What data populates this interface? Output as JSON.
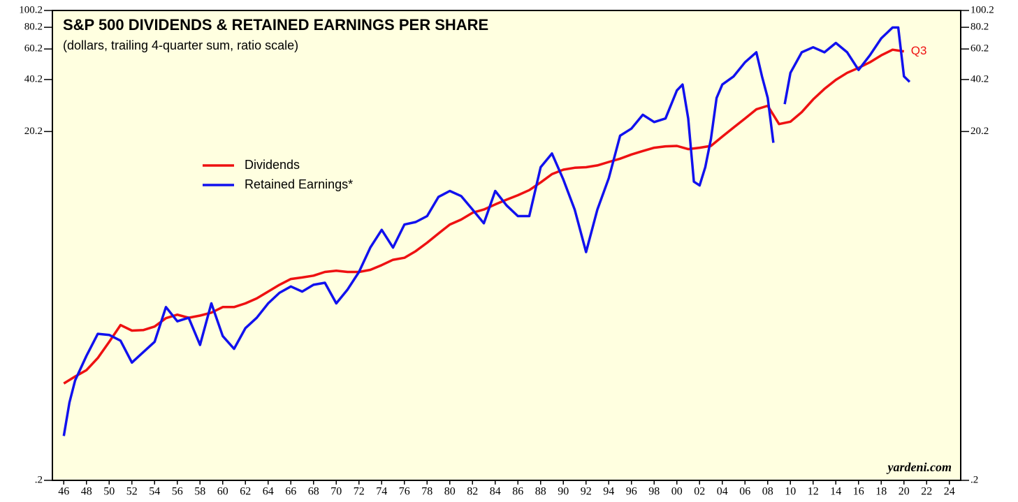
{
  "chart_data": {
    "type": "line",
    "title": "S&P 500 DIVIDENDS & RETAINED EARNINGS PER SHARE",
    "subtitle": "(dollars, trailing 4-quarter sum, ratio scale)",
    "annotation": "Q3",
    "watermark": "yardeni.com",
    "log_scale": true,
    "legend": "upper-left",
    "xlim": [
      1945,
      2025
    ],
    "xticks": [
      {
        "value": 1946,
        "label": "46"
      },
      {
        "value": 1948,
        "label": "48"
      },
      {
        "value": 1950,
        "label": "50"
      },
      {
        "value": 1952,
        "label": "52"
      },
      {
        "value": 1954,
        "label": "54"
      },
      {
        "value": 1956,
        "label": "56"
      },
      {
        "value": 1958,
        "label": "58"
      },
      {
        "value": 1960,
        "label": "60"
      },
      {
        "value": 1962,
        "label": "62"
      },
      {
        "value": 1964,
        "label": "64"
      },
      {
        "value": 1966,
        "label": "66"
      },
      {
        "value": 1968,
        "label": "68"
      },
      {
        "value": 1970,
        "label": "70"
      },
      {
        "value": 1972,
        "label": "72"
      },
      {
        "value": 1974,
        "label": "74"
      },
      {
        "value": 1976,
        "label": "76"
      },
      {
        "value": 1978,
        "label": "78"
      },
      {
        "value": 1980,
        "label": "80"
      },
      {
        "value": 1982,
        "label": "82"
      },
      {
        "value": 1984,
        "label": "84"
      },
      {
        "value": 1986,
        "label": "86"
      },
      {
        "value": 1988,
        "label": "88"
      },
      {
        "value": 1990,
        "label": "90"
      },
      {
        "value": 1992,
        "label": "92"
      },
      {
        "value": 1994,
        "label": "94"
      },
      {
        "value": 1996,
        "label": "96"
      },
      {
        "value": 1998,
        "label": "98"
      },
      {
        "value": 2000,
        "label": "00"
      },
      {
        "value": 2002,
        "label": "02"
      },
      {
        "value": 2004,
        "label": "04"
      },
      {
        "value": 2006,
        "label": "06"
      },
      {
        "value": 2008,
        "label": "08"
      },
      {
        "value": 2010,
        "label": "10"
      },
      {
        "value": 2012,
        "label": "12"
      },
      {
        "value": 2014,
        "label": "14"
      },
      {
        "value": 2016,
        "label": "16"
      },
      {
        "value": 2018,
        "label": "18"
      },
      {
        "value": 2020,
        "label": "20"
      },
      {
        "value": 2022,
        "label": "22"
      },
      {
        "value": 2024,
        "label": "24"
      }
    ],
    "ylim": [
      0.2,
      100.2
    ],
    "yticks": [
      {
        "value": 0.2,
        "label": ".2"
      },
      20.2,
      40.2,
      60.2,
      80.2,
      100.2
    ],
    "series": [
      {
        "name": "Dividends",
        "color": "#ee1111",
        "x": [
          1946,
          1947,
          1948,
          1949,
          1950,
          1951,
          1952,
          1953,
          1954,
          1955,
          1956,
          1957,
          1958,
          1959,
          1960,
          1961,
          1962,
          1963,
          1964,
          1965,
          1966,
          1967,
          1968,
          1969,
          1970,
          1971,
          1972,
          1973,
          1974,
          1975,
          1976,
          1977,
          1978,
          1979,
          1980,
          1981,
          1982,
          1983,
          1984,
          1985,
          1986,
          1987,
          1988,
          1989,
          1990,
          1991,
          1992,
          1993,
          1994,
          1995,
          1996,
          1997,
          1998,
          1999,
          2000,
          2001,
          2002,
          2003,
          2004,
          2005,
          2006,
          2007,
          2008,
          2009,
          2010,
          2011,
          2012,
          2013,
          2014,
          2015,
          2016,
          2017,
          2018,
          2019,
          2020
        ],
        "values": [
          0.72,
          0.79,
          0.86,
          1.01,
          1.25,
          1.56,
          1.45,
          1.46,
          1.53,
          1.71,
          1.79,
          1.72,
          1.77,
          1.84,
          1.98,
          1.98,
          2.08,
          2.22,
          2.43,
          2.66,
          2.87,
          2.93,
          3.0,
          3.15,
          3.2,
          3.15,
          3.15,
          3.24,
          3.45,
          3.7,
          3.8,
          4.15,
          4.64,
          5.24,
          5.9,
          6.3,
          6.9,
          7.2,
          7.7,
          8.2,
          8.7,
          9.3,
          10.3,
          11.5,
          12.2,
          12.5,
          12.6,
          12.9,
          13.5,
          14.1,
          14.9,
          15.6,
          16.3,
          16.6,
          16.7,
          16.0,
          16.3,
          16.7,
          18.9,
          21.3,
          24.0,
          27.1,
          28.4,
          22.3,
          23.0,
          26.1,
          30.9,
          35.5,
          40.0,
          43.9,
          46.9,
          50.5,
          55.4,
          59.6,
          58.3
        ]
      },
      {
        "name": "Retained Earnings*",
        "color": "#1111ee",
        "x": [
          1946,
          1946.5,
          1947,
          1948,
          1949,
          1950,
          1951,
          1952,
          1953,
          1954,
          1955,
          1956,
          1957,
          1958,
          1959,
          1960,
          1961,
          1962,
          1963,
          1964,
          1965,
          1966,
          1967,
          1968,
          1969,
          1970,
          1971,
          1972,
          1973,
          1974,
          1975,
          1976,
          1977,
          1978,
          1979,
          1980,
          1981,
          1982,
          1983,
          1984,
          1985,
          1986,
          1987,
          1988,
          1989,
          1990,
          1991,
          1992,
          1993,
          1994,
          1995,
          1996,
          1997,
          1998,
          1999,
          2000,
          2000.5,
          2001,
          2001.5,
          2002,
          2002.5,
          2003,
          2003.5,
          2004,
          2005,
          2006,
          2007,
          2007.5,
          2008,
          2008.5,
          2009,
          2009.5,
          2010,
          2011,
          2012,
          2013,
          2014,
          2015,
          2016,
          2017,
          2018,
          2019,
          2019.5,
          2020,
          2020.5
        ],
        "values": [
          0.36,
          0.56,
          0.75,
          1.04,
          1.39,
          1.37,
          1.27,
          0.95,
          1.09,
          1.25,
          1.98,
          1.64,
          1.72,
          1.2,
          2.08,
          1.35,
          1.14,
          1.5,
          1.72,
          2.08,
          2.39,
          2.6,
          2.43,
          2.66,
          2.73,
          2.08,
          2.5,
          3.15,
          4.35,
          5.5,
          4.35,
          5.9,
          6.1,
          6.6,
          8.5,
          9.2,
          8.6,
          7.2,
          6.0,
          9.2,
          7.6,
          6.6,
          6.6,
          12.6,
          15.1,
          10.7,
          7.2,
          4.1,
          7.2,
          10.9,
          19.1,
          21.0,
          25.2,
          22.9,
          24.0,
          34.8,
          37.6,
          24.0,
          10.4,
          9.9,
          12.6,
          18.3,
          31.5,
          37.6,
          41.9,
          50.5,
          57.6,
          41.9,
          31.5,
          17.4,
          null,
          29.0,
          43.9,
          57.6,
          61.6,
          57.6,
          65.2,
          57.6,
          45.6,
          55.4,
          69.3,
          80.0,
          80.0,
          41.9,
          39.0
        ]
      }
    ]
  }
}
